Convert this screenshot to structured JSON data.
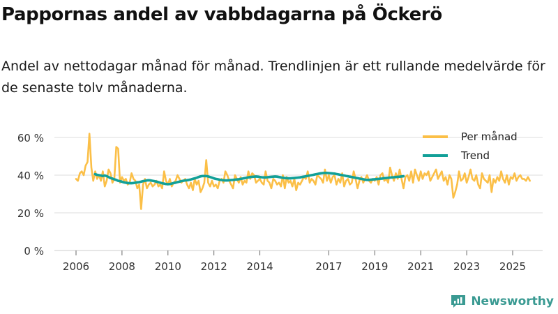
{
  "header": {
    "title": "Pappornas andel av vabbdagarna på Öckerö",
    "subtitle": "Andel av nettodagar månad för månad. Trendlinjen är ett rullande medelvärde för de senaste tolv månaderna."
  },
  "brand": {
    "name": "Newsworthy",
    "icon": "newsworthy-logo-icon"
  },
  "colors": {
    "monthly": "#fbbf47",
    "trend": "#12a098",
    "grid": "#dddddd",
    "axis": "#cccccc"
  },
  "chart_data": {
    "type": "line",
    "title": "Pappornas andel av vabbdagarna på Öckerö",
    "xlabel": "",
    "ylabel": "",
    "ylim": [
      0,
      60
    ],
    "yticks": [
      0,
      20,
      40,
      60
    ],
    "ytick_labels": [
      "0 %",
      "20 %",
      "40 %",
      "60 %"
    ],
    "xlim": [
      2005.5,
      2026.0
    ],
    "xticks": [
      2006,
      2008,
      2010,
      2012,
      2014,
      2017,
      2019,
      2021,
      2023,
      2025
    ],
    "xtick_labels": [
      "2006",
      "2008",
      "2010",
      "2012",
      "2014",
      "2017",
      "2019",
      "2021",
      "2023",
      "2025"
    ],
    "legend": {
      "position": "top-right",
      "entries": [
        "Per månad",
        "Trend"
      ]
    },
    "series": [
      {
        "name": "Per månad",
        "x_start": 2006.0,
        "step": 0.08333,
        "values": [
          38,
          37,
          41,
          42,
          40,
          45,
          47,
          62,
          44,
          37,
          42,
          38,
          40,
          37,
          42,
          34,
          37,
          43,
          41,
          36,
          38,
          55,
          54,
          36,
          39,
          37,
          38,
          35,
          36,
          41,
          38,
          37,
          33,
          35,
          22,
          35,
          38,
          33,
          35,
          36,
          34,
          35,
          37,
          34,
          35,
          33,
          42,
          37,
          35,
          38,
          34,
          36,
          37,
          40,
          38,
          36,
          37,
          38,
          35,
          33,
          36,
          32,
          38,
          35,
          37,
          31,
          33,
          36,
          48,
          36,
          34,
          37,
          34,
          35,
          33,
          37,
          38,
          36,
          42,
          40,
          37,
          35,
          33,
          40,
          38,
          36,
          39,
          35,
          37,
          36,
          42,
          38,
          41,
          40,
          36,
          37,
          38,
          36,
          35,
          42,
          37,
          36,
          33,
          38,
          37,
          35,
          36,
          34,
          40,
          33,
          39,
          36,
          37,
          34,
          38,
          32,
          36,
          35,
          37,
          39,
          38,
          42,
          36,
          38,
          37,
          35,
          40,
          39,
          38,
          36,
          43,
          37,
          40,
          36,
          39,
          40,
          35,
          38,
          36,
          41,
          34,
          37,
          38,
          35,
          36,
          42,
          38,
          33,
          37,
          39,
          36,
          38,
          40,
          37,
          36,
          38,
          37,
          39,
          35,
          40,
          41,
          37,
          38,
          36,
          44,
          40,
          37,
          41,
          38,
          43,
          38,
          33,
          39,
          40,
          37,
          42,
          36,
          43,
          40,
          37,
          42,
          38,
          41,
          40,
          42,
          37,
          39,
          41,
          43,
          38,
          40,
          42,
          37,
          39,
          35,
          40,
          38,
          28,
          31,
          35,
          42,
          37,
          38,
          41,
          36,
          39,
          43,
          38,
          37,
          40,
          35,
          33,
          41,
          38,
          37,
          36,
          40,
          31,
          38,
          36,
          39,
          37,
          42,
          38,
          36,
          40,
          35,
          39,
          38,
          41,
          37,
          39,
          40,
          38,
          38,
          37,
          39,
          37
        ]
      },
      {
        "name": "Trend",
        "x_start": 2006.83,
        "step": 0.08333,
        "values": [
          40.5,
          40.2,
          40,
          39.8,
          39.5,
          39.8,
          39.5,
          39,
          38.5,
          38.2,
          37.8,
          37.5,
          37,
          36.8,
          36.5,
          36.2,
          36,
          35.8,
          35.7,
          35.7,
          35.8,
          36,
          36.2,
          36.3,
          36.5,
          36.8,
          37,
          37.2,
          37.3,
          37.2,
          37,
          36.8,
          36.6,
          36.3,
          36,
          35.7,
          35.5,
          35.3,
          35.2,
          35.3,
          35.5,
          35.8,
          36,
          36.3,
          36.5,
          36.8,
          37,
          37.2,
          37.3,
          37.5,
          37.7,
          38,
          38.3,
          38.6,
          39,
          39.3,
          39.5,
          39.5,
          39.5,
          39.3,
          39,
          38.7,
          38.3,
          38,
          37.8,
          37.6,
          37.4,
          37.3,
          37.2,
          37.2,
          37.3,
          37.4,
          37.5,
          37.6,
          37.7,
          37.8,
          38,
          38.2,
          38.4,
          38.6,
          38.8,
          39,
          39.1,
          39.2,
          39.3,
          39.2,
          39,
          38.9,
          38.8,
          38.8,
          38.9,
          39,
          39.1,
          39.2,
          39.3,
          39.2,
          39,
          38.8,
          38.6,
          38.5,
          38.4,
          38.3,
          38.3,
          38.4,
          38.5,
          38.6,
          38.7,
          38.8,
          39,
          39.2,
          39.4,
          39.6,
          39.8,
          40,
          40.2,
          40.4,
          40.6,
          40.8,
          41,
          41.1,
          41.2,
          41.2,
          41.1,
          41,
          40.9,
          40.8,
          40.6,
          40.4,
          40.2,
          40,
          39.8,
          39.6,
          39.4,
          39.2,
          39,
          38.8,
          38.6,
          38.4,
          38.2,
          38,
          37.8,
          37.6,
          37.5,
          37.5,
          37.6,
          37.7,
          37.8,
          37.9,
          38,
          38.1,
          38.2,
          38.4,
          38.5,
          38.6,
          38.7,
          38.8,
          38.9,
          39,
          39.1,
          39.2,
          39.3,
          39.4
        ]
      }
    ]
  }
}
